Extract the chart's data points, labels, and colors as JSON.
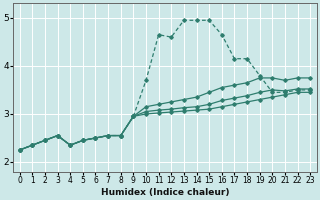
{
  "xlabel": "Humidex (Indice chaleur)",
  "bg_color": "#cde8e8",
  "grid_color": "#ffffff",
  "line_color": "#2e7d6e",
  "xlim": [
    -0.5,
    23.5
  ],
  "ylim": [
    1.8,
    5.3
  ],
  "yticks": [
    2,
    3,
    4,
    5
  ],
  "xticks": [
    0,
    1,
    2,
    3,
    4,
    5,
    6,
    7,
    8,
    9,
    10,
    11,
    12,
    13,
    14,
    15,
    16,
    17,
    18,
    19,
    20,
    21,
    22,
    23
  ],
  "series": [
    {
      "x": [
        0,
        1,
        2,
        3,
        4,
        5,
        6,
        7,
        8,
        9,
        10,
        11,
        12,
        13,
        14,
        15,
        16,
        17,
        18,
        19,
        20,
        21,
        22,
        23
      ],
      "y": [
        2.25,
        2.35,
        2.45,
        2.55,
        2.35,
        2.45,
        2.5,
        2.55,
        2.55,
        2.95,
        3.7,
        4.65,
        4.6,
        4.95,
        4.95,
        4.95,
        4.65,
        4.15,
        4.15,
        3.8,
        3.45,
        3.45,
        3.5,
        3.5
      ],
      "linestyle": "--"
    },
    {
      "x": [
        0,
        1,
        2,
        3,
        4,
        5,
        6,
        7,
        8,
        9,
        10,
        11,
        12,
        13,
        14,
        15,
        16,
        17,
        18,
        19,
        20,
        21,
        22,
        23
      ],
      "y": [
        2.25,
        2.35,
        2.45,
        2.55,
        2.35,
        2.45,
        2.5,
        2.55,
        2.55,
        2.95,
        3.15,
        3.2,
        3.25,
        3.3,
        3.35,
        3.45,
        3.55,
        3.6,
        3.65,
        3.75,
        3.75,
        3.7,
        3.75,
        3.75
      ],
      "linestyle": "-"
    },
    {
      "x": [
        0,
        1,
        2,
        3,
        4,
        5,
        6,
        7,
        8,
        9,
        10,
        11,
        12,
        13,
        14,
        15,
        16,
        17,
        18,
        19,
        20,
        21,
        22,
        23
      ],
      "y": [
        2.25,
        2.35,
        2.45,
        2.55,
        2.35,
        2.45,
        2.5,
        2.55,
        2.55,
        2.95,
        3.05,
        3.08,
        3.1,
        3.13,
        3.15,
        3.2,
        3.28,
        3.33,
        3.38,
        3.45,
        3.5,
        3.48,
        3.52,
        3.52
      ],
      "linestyle": "-"
    },
    {
      "x": [
        0,
        1,
        2,
        3,
        4,
        5,
        6,
        7,
        8,
        9,
        10,
        11,
        12,
        13,
        14,
        15,
        16,
        17,
        18,
        19,
        20,
        21,
        22,
        23
      ],
      "y": [
        2.25,
        2.35,
        2.45,
        2.55,
        2.35,
        2.45,
        2.5,
        2.55,
        2.55,
        2.95,
        3.0,
        3.02,
        3.04,
        3.06,
        3.08,
        3.1,
        3.15,
        3.2,
        3.25,
        3.3,
        3.35,
        3.4,
        3.45,
        3.45
      ],
      "linestyle": "-"
    }
  ]
}
